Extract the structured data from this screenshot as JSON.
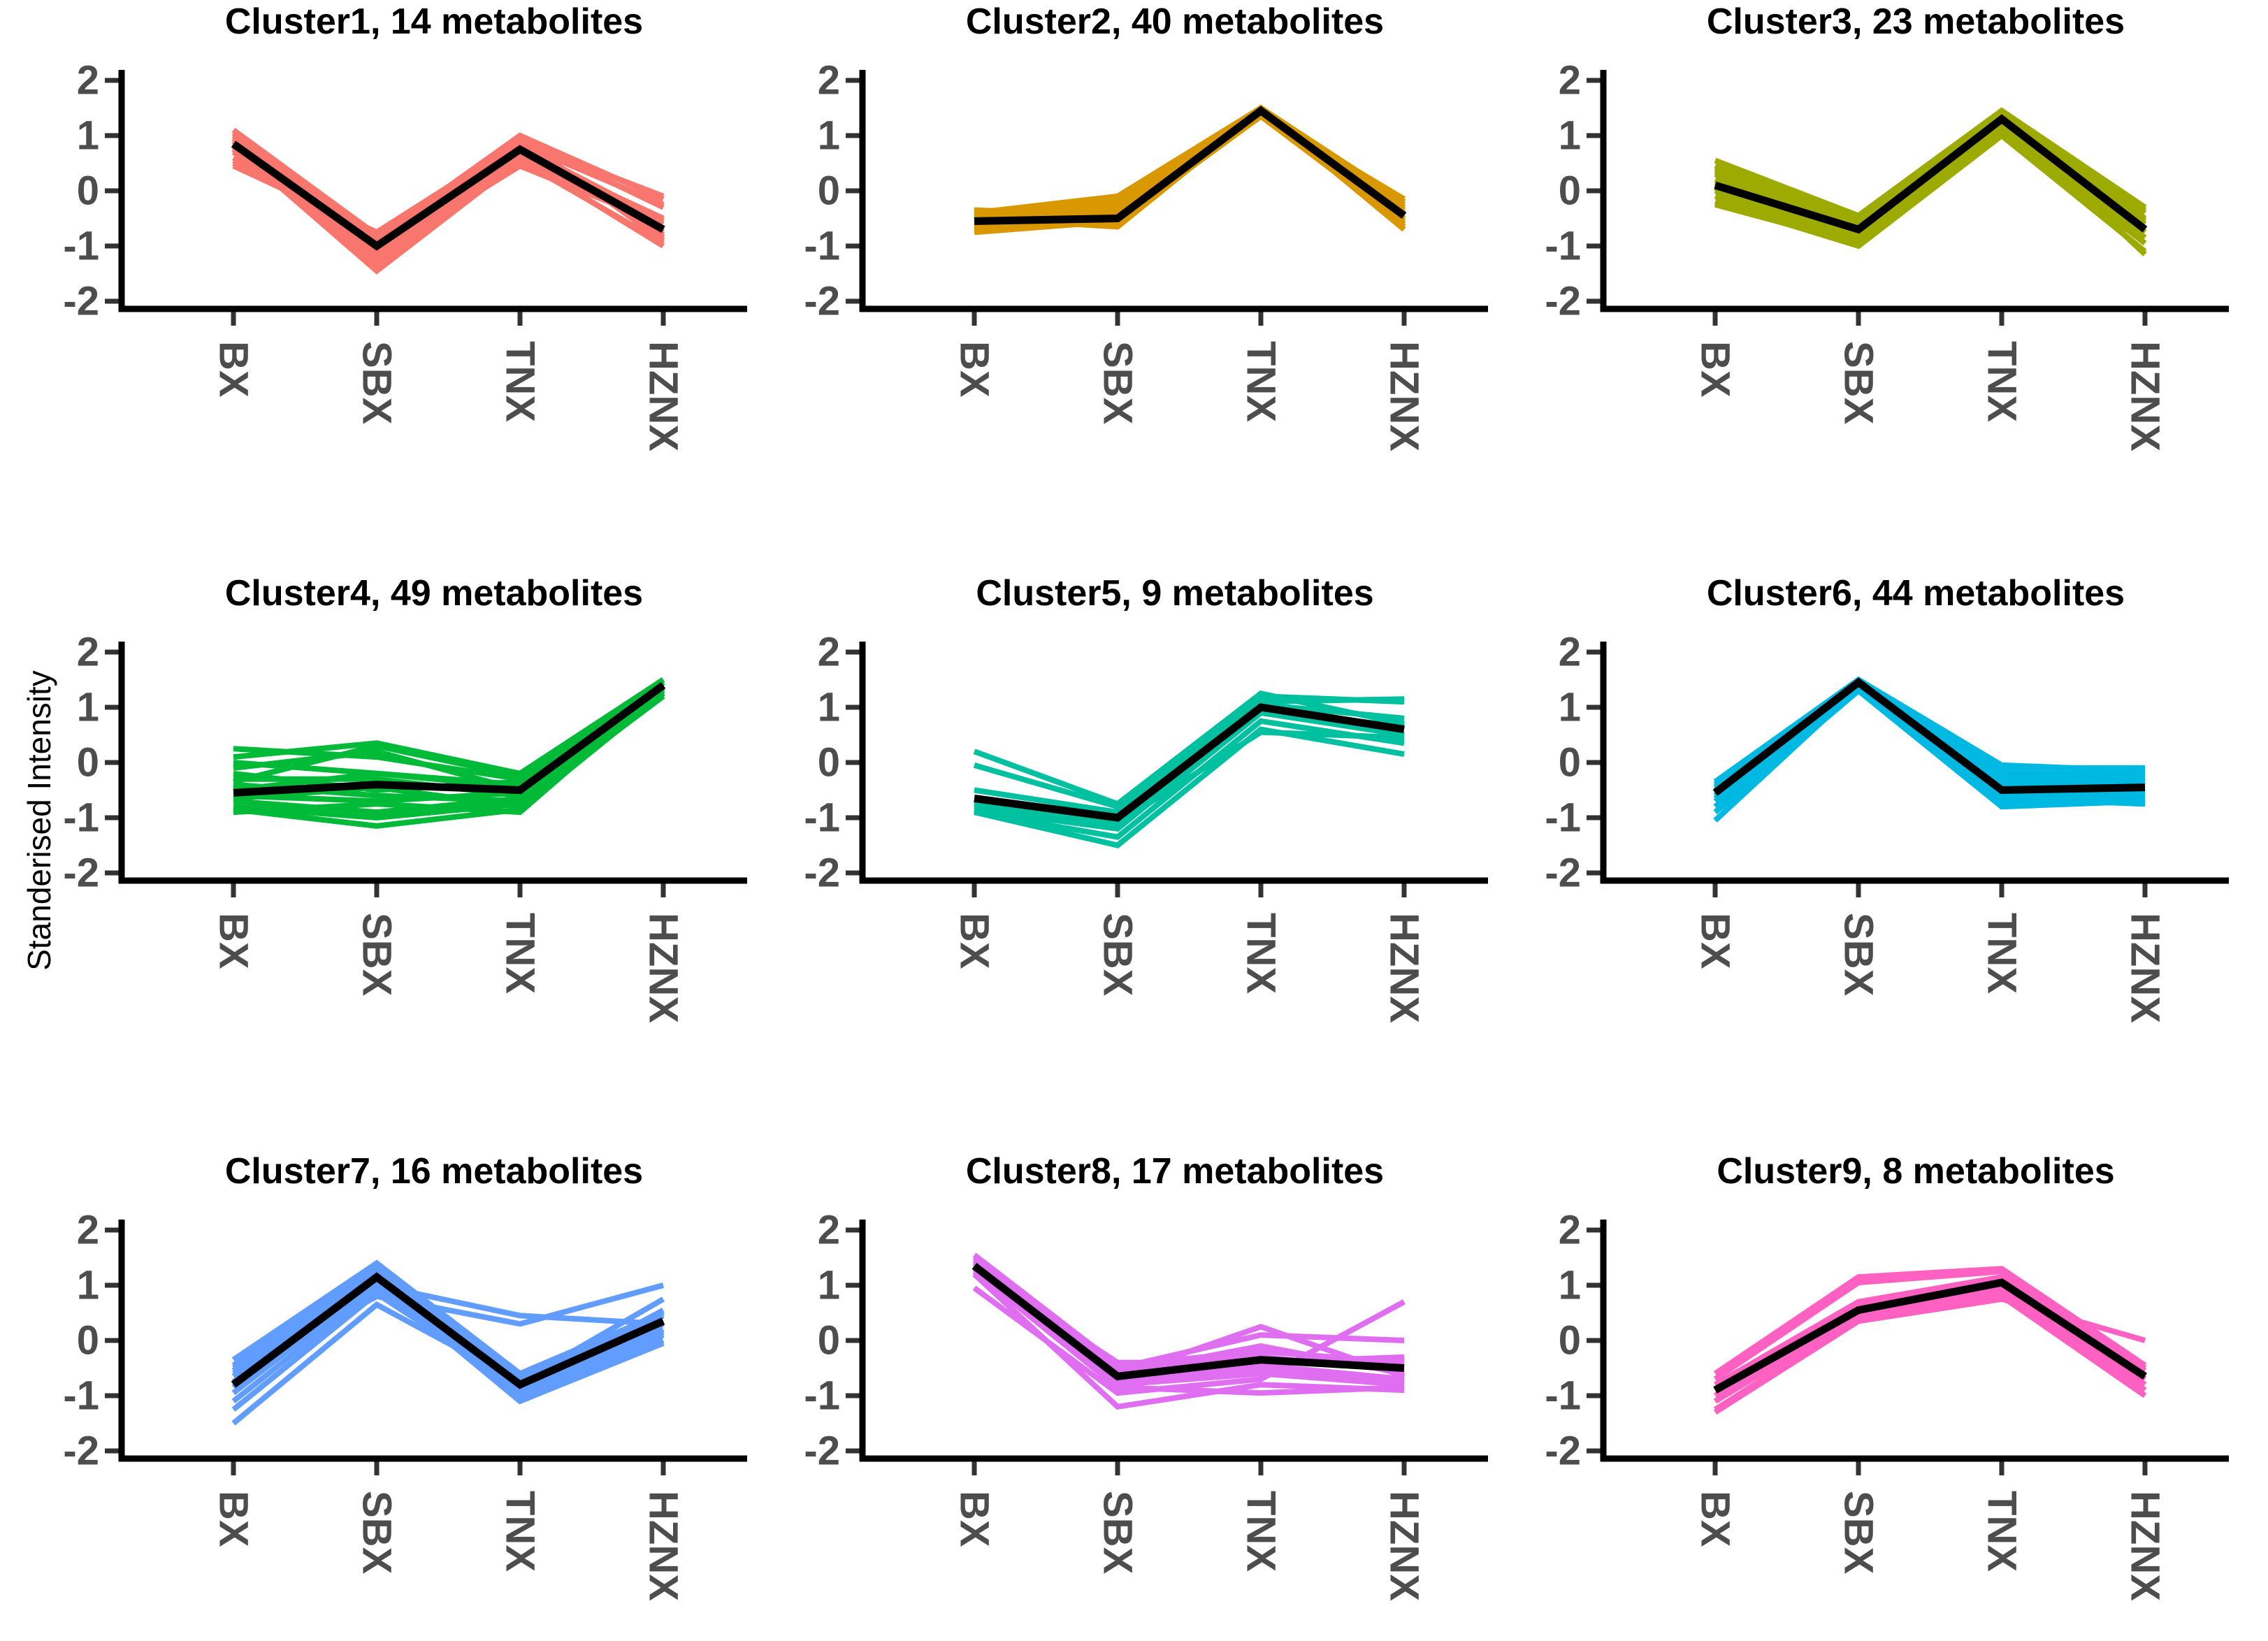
{
  "figure": {
    "ylabel": "Standerised Intensity",
    "categories": [
      "BX",
      "SBX",
      "TNX",
      "HZNX"
    ],
    "y_ticks": [
      "2",
      "1",
      "0",
      "-1",
      "-2"
    ],
    "ylim": [
      -2,
      2
    ],
    "axis_color": "#000000",
    "tick_mark_color": "#333333",
    "tick_label_color": "#4d4d4d",
    "title_color": "#000000",
    "mean_line_color": "#000000",
    "background": "#ffffff"
  },
  "chart_data": [
    {
      "type": "line",
      "title": "Cluster1, 14 metabolites",
      "cluster_color": "#F8766D",
      "mean": [
        0.85,
        -1.0,
        0.75,
        -0.7
      ],
      "members": [
        [
          1.1,
          -0.8,
          0.9,
          -0.85
        ],
        [
          1.05,
          -0.9,
          0.95,
          -0.9
        ],
        [
          1.0,
          -1.1,
          0.85,
          -0.8
        ],
        [
          0.95,
          -1.25,
          0.7,
          -0.75
        ],
        [
          0.9,
          -1.35,
          0.6,
          -1.0
        ],
        [
          0.8,
          -1.45,
          0.55,
          -0.95
        ],
        [
          0.7,
          -1.0,
          0.8,
          -0.55
        ],
        [
          0.6,
          -0.9,
          0.95,
          -0.3
        ],
        [
          0.5,
          -0.85,
          1.0,
          -0.15
        ],
        [
          0.45,
          -0.75,
          0.9,
          -0.1
        ],
        [
          0.85,
          -1.15,
          0.45,
          -0.6
        ],
        [
          0.75,
          -1.2,
          0.65,
          -0.7
        ],
        [
          0.9,
          -1.05,
          0.7,
          -0.5
        ],
        [
          0.55,
          -0.95,
          0.85,
          -0.25
        ]
      ]
    },
    {
      "type": "line",
      "title": "Cluster2, 40 metabolites",
      "cluster_color": "#D99800",
      "mean": [
        -0.55,
        -0.5,
        1.45,
        -0.45
      ],
      "members": [
        [
          -0.4,
          -0.1,
          1.5,
          -0.2
        ],
        [
          -0.45,
          -0.2,
          1.5,
          -0.3
        ],
        [
          -0.5,
          -0.3,
          1.45,
          -0.35
        ],
        [
          -0.55,
          -0.35,
          1.45,
          -0.4
        ],
        [
          -0.6,
          -0.4,
          1.4,
          -0.45
        ],
        [
          -0.65,
          -0.45,
          1.4,
          -0.5
        ],
        [
          -0.7,
          -0.5,
          1.35,
          -0.55
        ],
        [
          -0.75,
          -0.55,
          1.35,
          -0.6
        ],
        [
          -0.6,
          -0.6,
          1.4,
          -0.65
        ],
        [
          -0.5,
          -0.65,
          1.45,
          -0.7
        ],
        [
          -0.45,
          -0.55,
          1.5,
          -0.25
        ],
        [
          -0.35,
          -0.45,
          1.4,
          -0.15
        ]
      ]
    },
    {
      "type": "line",
      "title": "Cluster3, 23 metabolites",
      "cluster_color": "#9DAB00",
      "mean": [
        0.1,
        -0.7,
        1.3,
        -0.7
      ],
      "members": [
        [
          0.55,
          -0.45,
          1.45,
          -0.35
        ],
        [
          0.45,
          -0.5,
          1.4,
          -0.4
        ],
        [
          0.35,
          -0.55,
          1.35,
          -0.5
        ],
        [
          0.3,
          -0.6,
          1.3,
          -0.55
        ],
        [
          0.2,
          -0.65,
          1.25,
          -0.6
        ],
        [
          0.15,
          -0.75,
          1.2,
          -0.7
        ],
        [
          0.05,
          -0.8,
          1.15,
          -0.75
        ],
        [
          0.0,
          -0.85,
          1.1,
          -0.85
        ],
        [
          -0.1,
          -0.9,
          1.05,
          -0.95
        ],
        [
          -0.2,
          -1.0,
          1.0,
          -1.1
        ],
        [
          -0.25,
          -0.95,
          1.3,
          -1.15
        ],
        [
          0.4,
          -0.45,
          1.45,
          -0.3
        ]
      ]
    },
    {
      "type": "line",
      "title": "Cluster4, 49 metabolites",
      "cluster_color": "#00BA38",
      "mean": [
        -0.55,
        -0.4,
        -0.5,
        1.4
      ],
      "members": [
        [
          0.25,
          0.1,
          -0.3,
          1.45
        ],
        [
          0.1,
          0.35,
          -0.2,
          1.5
        ],
        [
          0.0,
          -0.2,
          -0.4,
          1.45
        ],
        [
          -0.1,
          0.2,
          -0.5,
          1.4
        ],
        [
          -0.2,
          -0.5,
          -0.35,
          1.35
        ],
        [
          -0.3,
          -0.3,
          -0.6,
          1.4
        ],
        [
          -0.4,
          -0.6,
          -0.7,
          1.3
        ],
        [
          -0.5,
          -0.2,
          -0.45,
          1.45
        ],
        [
          -0.6,
          -0.7,
          -0.55,
          1.35
        ],
        [
          -0.65,
          -0.45,
          -0.8,
          1.25
        ],
        [
          -0.7,
          -0.9,
          -0.65,
          1.3
        ],
        [
          -0.8,
          -1.0,
          -0.75,
          1.2
        ],
        [
          -0.85,
          -1.15,
          -0.85,
          1.25
        ],
        [
          -0.9,
          -0.75,
          -0.9,
          1.35
        ],
        [
          -0.35,
          0.3,
          -0.25,
          1.5
        ]
      ]
    },
    {
      "type": "line",
      "title": "Cluster5, 9 metabolites",
      "cluster_color": "#00C19F",
      "mean": [
        -0.65,
        -1.0,
        1.0,
        0.6
      ],
      "members": [
        [
          0.2,
          -0.75,
          1.25,
          0.7
        ],
        [
          -0.05,
          -0.8,
          1.2,
          1.1
        ],
        [
          -0.5,
          -0.9,
          1.1,
          1.15
        ],
        [
          -0.7,
          -0.95,
          1.05,
          0.8
        ],
        [
          -0.8,
          -1.05,
          0.95,
          0.65
        ],
        [
          -0.85,
          -1.2,
          0.9,
          0.5
        ],
        [
          -0.9,
          -1.35,
          0.75,
          0.35
        ],
        [
          -0.9,
          -1.5,
          0.6,
          0.15
        ],
        [
          -0.75,
          -1.1,
          0.55,
          0.45
        ]
      ]
    },
    {
      "type": "line",
      "title": "Cluster6, 44 metabolites",
      "cluster_color": "#00B9E3",
      "mean": [
        -0.55,
        1.45,
        -0.5,
        -0.45
      ],
      "members": [
        [
          -0.35,
          1.5,
          -0.1,
          -0.1
        ],
        [
          -0.4,
          1.45,
          -0.2,
          -0.2
        ],
        [
          -0.45,
          1.5,
          -0.3,
          -0.25
        ],
        [
          -0.5,
          1.4,
          -0.4,
          -0.3
        ],
        [
          -0.55,
          1.45,
          -0.45,
          -0.4
        ],
        [
          -0.6,
          1.4,
          -0.55,
          -0.45
        ],
        [
          -0.65,
          1.35,
          -0.6,
          -0.5
        ],
        [
          -0.7,
          1.4,
          -0.7,
          -0.55
        ],
        [
          -0.8,
          1.35,
          -0.75,
          -0.6
        ],
        [
          -0.9,
          1.3,
          -0.8,
          -0.7
        ],
        [
          -1.05,
          1.35,
          -0.65,
          -0.75
        ],
        [
          -0.45,
          1.5,
          -0.05,
          -0.15
        ]
      ]
    },
    {
      "type": "line",
      "title": "Cluster7, 16 metabolites",
      "cluster_color": "#619CFF",
      "mean": [
        -0.8,
        1.15,
        -0.8,
        0.35
      ],
      "members": [
        [
          -0.35,
          1.4,
          -0.6,
          0.5
        ],
        [
          -0.45,
          1.35,
          -0.7,
          0.45
        ],
        [
          -0.55,
          1.3,
          -0.8,
          0.3
        ],
        [
          -0.65,
          1.25,
          -0.9,
          0.2
        ],
        [
          -0.75,
          1.2,
          -1.0,
          0.1
        ],
        [
          -0.85,
          1.1,
          -1.05,
          0.0
        ],
        [
          -0.95,
          1.05,
          -1.1,
          -0.05
        ],
        [
          -1.1,
          0.95,
          -0.95,
          0.15
        ],
        [
          -1.25,
          0.85,
          -0.85,
          0.55
        ],
        [
          -1.5,
          0.65,
          -0.75,
          0.75
        ],
        [
          -0.5,
          1.0,
          0.45,
          0.3
        ],
        [
          -0.6,
          0.8,
          0.3,
          1.0
        ]
      ]
    },
    {
      "type": "line",
      "title": "Cluster8, 17 metabolites",
      "cluster_color": "#E06EF0",
      "mean": [
        1.35,
        -0.65,
        -0.35,
        -0.5
      ],
      "members": [
        [
          1.55,
          -0.45,
          -0.2,
          -0.4
        ],
        [
          1.5,
          -0.55,
          -0.3,
          -0.55
        ],
        [
          1.45,
          -0.6,
          -0.1,
          -0.6
        ],
        [
          1.4,
          -0.65,
          0.25,
          -0.65
        ],
        [
          1.4,
          -0.7,
          -0.45,
          -0.7
        ],
        [
          1.35,
          -0.75,
          -0.55,
          -0.75
        ],
        [
          1.3,
          -0.8,
          -0.6,
          -0.8
        ],
        [
          1.25,
          -0.85,
          -0.95,
          -0.85
        ],
        [
          1.2,
          -1.2,
          -0.8,
          -0.9
        ],
        [
          0.95,
          -0.95,
          -0.7,
          0.7
        ],
        [
          1.45,
          -0.5,
          0.1,
          0.0
        ],
        [
          1.3,
          -0.4,
          -0.4,
          -0.3
        ]
      ]
    },
    {
      "type": "line",
      "title": "Cluster9, 8 metabolites",
      "cluster_color": "#FF61C3",
      "mean": [
        -0.9,
        0.55,
        1.05,
        -0.65
      ],
      "members": [
        [
          -0.6,
          1.15,
          1.3,
          -0.45
        ],
        [
          -0.7,
          1.05,
          1.25,
          -0.5
        ],
        [
          -0.8,
          0.7,
          1.15,
          -0.55
        ],
        [
          -0.9,
          0.6,
          1.1,
          -0.7
        ],
        [
          -1.0,
          0.5,
          1.0,
          -0.8
        ],
        [
          -1.1,
          0.45,
          0.9,
          -0.9
        ],
        [
          -1.25,
          0.4,
          0.8,
          -1.0
        ],
        [
          -1.3,
          0.35,
          0.75,
          0.0
        ]
      ]
    }
  ]
}
